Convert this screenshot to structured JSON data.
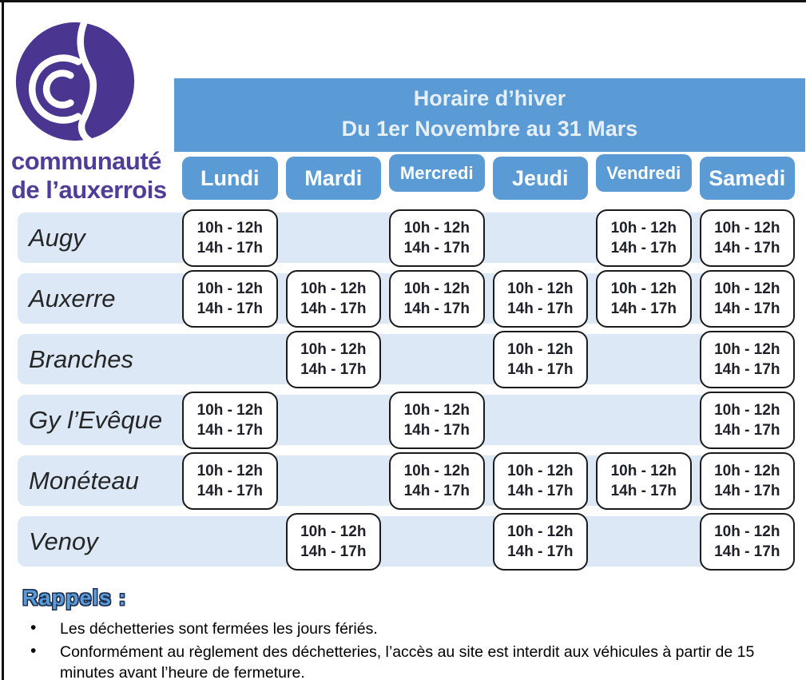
{
  "brand": {
    "org_line1": "communauté",
    "org_line2": "de l’auxerrois"
  },
  "header": {
    "title_line1": "Horaire d’hiver",
    "title_line2": "Du 1er Novembre au 31 Mars"
  },
  "days": [
    "Lundi",
    "Mardi",
    "Mercredi",
    "Jeudi",
    "Vendredi",
    "Samedi"
  ],
  "hours": {
    "morning": "10h - 12h",
    "afternoon": "14h - 17h"
  },
  "rows": [
    {
      "name": "Augy",
      "open": [
        true,
        false,
        true,
        false,
        true,
        true
      ]
    },
    {
      "name": "Auxerre",
      "open": [
        true,
        true,
        true,
        true,
        true,
        true
      ]
    },
    {
      "name": "Branches",
      "open": [
        false,
        true,
        false,
        true,
        false,
        true
      ]
    },
    {
      "name": "Gy l’Evêque",
      "open": [
        true,
        false,
        true,
        false,
        false,
        true
      ]
    },
    {
      "name": "Monéteau",
      "open": [
        true,
        false,
        true,
        true,
        true,
        true
      ]
    },
    {
      "name": "Venoy",
      "open": [
        false,
        true,
        false,
        true,
        false,
        true
      ]
    }
  ],
  "reminders": {
    "heading": "Rappels :",
    "items": [
      "Les déchetteries sont fermées les jours fériés.",
      "Conformément au règlement des déchetteries, l’accès au site est interdit aux véhicules à partir de 15 minutes avant l’heure de fermeture."
    ]
  },
  "colors": {
    "accent_blue": "#5B9BD5",
    "row_band": "#DCE8F5",
    "logo_purple": "#4A3590",
    "text_purple": "#503D97"
  }
}
